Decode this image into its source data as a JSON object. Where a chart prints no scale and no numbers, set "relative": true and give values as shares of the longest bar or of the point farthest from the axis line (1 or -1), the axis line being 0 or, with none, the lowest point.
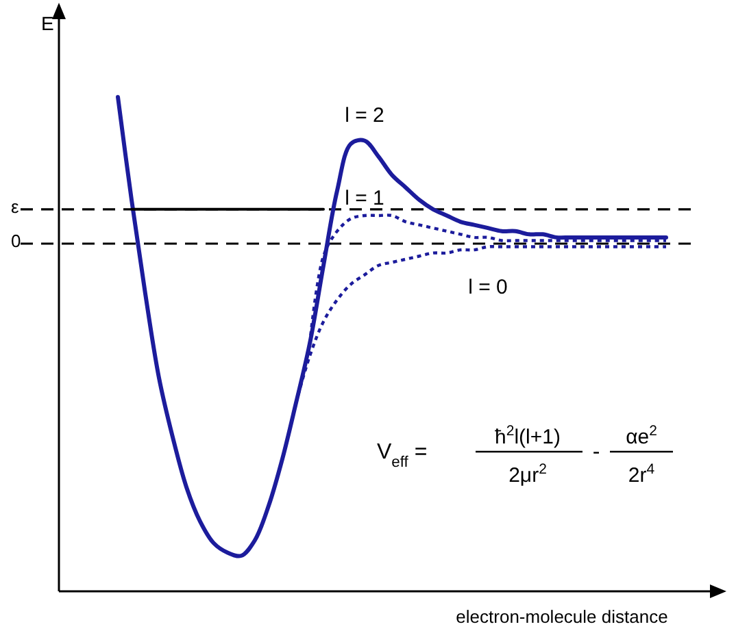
{
  "chart_data": {
    "type": "line",
    "relative": true,
    "xlabel": "electron-molecule distance",
    "ylabel": "E",
    "categories": [
      null,
      null,
      null,
      null,
      null,
      null,
      null,
      null,
      null,
      null,
      null,
      null,
      null,
      null,
      null,
      null,
      null,
      null,
      null,
      null,
      null,
      null,
      null,
      null,
      null,
      null,
      null,
      null,
      null,
      null,
      null,
      null,
      null,
      null,
      null,
      null,
      null,
      null,
      null,
      null,
      null,
      null,
      null,
      null,
      null,
      null
    ],
    "series": [
      {
        "name": "l = 2",
        "color": "#1c1c9c",
        "line_style": "solid",
        "values": [
          null,
          null,
          null,
          null,
          0.47,
          0.14,
          -0.16,
          -0.43,
          -0.62,
          -0.78,
          -0.89,
          -0.96,
          -0.99,
          -1.0,
          -0.95,
          -0.84,
          -0.69,
          -0.51,
          -0.32,
          -0.07,
          0.17,
          0.32,
          0.33,
          0.28,
          0.22,
          0.18,
          0.14,
          0.11,
          0.09,
          0.07,
          0.06,
          0.05,
          0.04,
          0.04,
          0.03,
          0.03,
          0.02,
          0.02,
          0.02,
          0.02,
          0.02,
          0.02,
          0.02,
          0.02,
          0.02,
          null
        ]
      },
      {
        "name": "l = 1",
        "color": "#1c1c9c",
        "line_style": "dotted",
        "values": [
          null,
          null,
          null,
          null,
          null,
          null,
          null,
          null,
          null,
          null,
          null,
          null,
          null,
          null,
          null,
          null,
          null,
          null,
          -0.32,
          -0.04,
          0.04,
          0.08,
          0.09,
          0.09,
          0.09,
          0.07,
          0.06,
          0.05,
          0.04,
          0.03,
          0.02,
          0.02,
          0.01,
          0.01,
          0.01,
          0.01,
          0.01,
          0.01,
          0.01,
          0.01,
          0.01,
          0.01,
          0.01,
          0.01,
          0.01,
          null
        ]
      },
      {
        "name": "l = 0",
        "color": "#1c1c9c",
        "line_style": "dotted",
        "values": [
          null,
          null,
          null,
          null,
          null,
          null,
          null,
          null,
          null,
          null,
          null,
          null,
          null,
          null,
          null,
          null,
          null,
          -0.51,
          -0.36,
          -0.25,
          -0.18,
          -0.13,
          -0.1,
          -0.07,
          -0.06,
          -0.05,
          -0.04,
          -0.03,
          -0.03,
          -0.02,
          -0.02,
          -0.01,
          -0.01,
          -0.01,
          -0.01,
          -0.01,
          -0.01,
          -0.01,
          -0.01,
          -0.01,
          -0.01,
          -0.01,
          -0.01,
          -0.01,
          -0.01,
          null
        ]
      },
      {
        "color": "#000000",
        "line_style": "solid",
        "values": [
          null,
          null,
          null,
          null,
          null,
          0.11,
          0.11,
          0.11,
          0.11,
          0.11,
          0.11,
          0.11,
          0.11,
          0.11,
          0.11,
          0.11,
          0.11,
          0.11,
          0.11,
          0.11,
          null,
          null,
          null,
          null,
          null,
          null,
          null,
          null,
          null,
          null,
          null,
          null,
          null,
          null,
          null,
          null,
          null,
          null,
          null,
          null,
          null,
          null,
          null,
          null,
          null,
          null
        ]
      }
    ],
    "ref_lines": [
      {
        "axis": "y",
        "value": 0.11,
        "label": "ε",
        "color": "#000000",
        "line_style": "dashed"
      },
      {
        "axis": "y",
        "value": 0,
        "label": "0",
        "color": "#000000",
        "line_style": "dashed"
      }
    ],
    "annotations": [
      "V$_{eff}$ =",
      "ħ$^{2}$l(l+1)",
      "2μr$^{2}$",
      "-",
      "αe$^{2}$",
      "2r$^{4}$"
    ]
  }
}
